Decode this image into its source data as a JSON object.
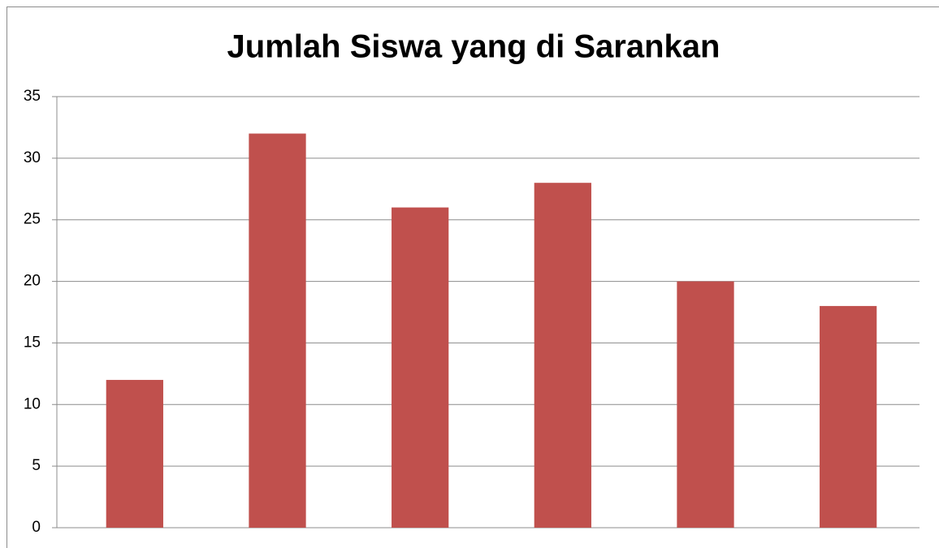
{
  "chart_data": {
    "type": "bar",
    "title": "Jumlah Siswa yang di Sarankan",
    "categories": [
      null,
      null,
      null,
      null,
      null,
      null
    ],
    "values": [
      12,
      32,
      26,
      28,
      20,
      18
    ],
    "color": "#c0504d",
    "ylim": [
      0,
      35
    ],
    "yticks": [
      0,
      5,
      10,
      15,
      20,
      25,
      30,
      35
    ],
    "grid": true
  }
}
